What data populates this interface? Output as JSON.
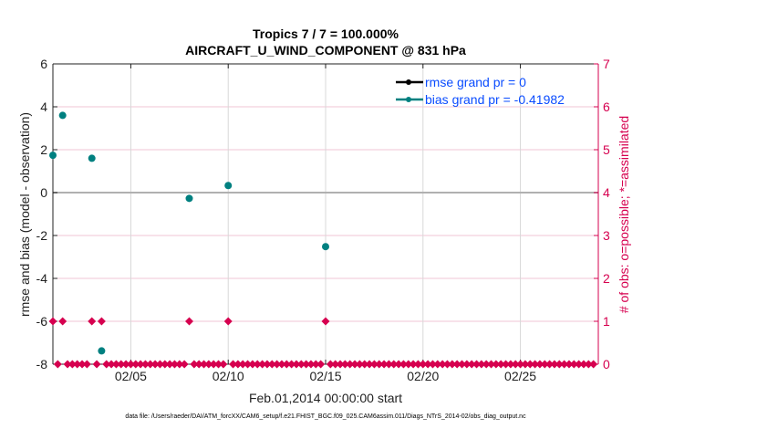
{
  "chart_data": {
    "type": "scatter",
    "title_line1": "Tropics 7 / 7 = 100.000%",
    "title_line2": "AIRCRAFT_U_WIND_COMPONENT @ 831 hPa",
    "xlabel": "Feb.01,2014 00:00:00 start",
    "ylabel_left": "rmse and bias (model - observation)",
    "ylabel_right": "# of obs: o=possible; *=assimilated",
    "footer": "data file: /Users/raeder/DAI/ATM_forcXX/CAM6_setup/f.e21.FHIST_BGC.f09_025.CAM6assim.011/Diags_NTrS_2014-02/obs_diag_output.nc",
    "x_units": "days since Feb.01,2014 00:00:00",
    "xlim": [
      0,
      28
    ],
    "x_ticks": [
      {
        "value": 4,
        "label": "02/05"
      },
      {
        "value": 9,
        "label": "02/10"
      },
      {
        "value": 14,
        "label": "02/15"
      },
      {
        "value": 19,
        "label": "02/20"
      },
      {
        "value": 24,
        "label": "02/25"
      }
    ],
    "ylim_left": [
      -8,
      6
    ],
    "y_ticks_left": [
      "-8",
      "-6",
      "-4",
      "-2",
      "0",
      "2",
      "4",
      "6"
    ],
    "ylim_right": [
      0,
      7
    ],
    "y_ticks_right": [
      "0",
      "1",
      "2",
      "3",
      "4",
      "5",
      "6",
      "7"
    ],
    "grid": true,
    "legend_placement": "top-right",
    "legend": [
      {
        "label": "rmse grand pr = 0",
        "color": "#000000"
      },
      {
        "label": "bias grand pr = -0.41982",
        "color": "#008080"
      }
    ],
    "bias_series": {
      "name": "bias",
      "color": "#008080",
      "x": [
        0,
        0.5,
        2,
        2.5,
        7,
        9,
        14
      ],
      "y": [
        1.74,
        3.6,
        1.6,
        -7.38,
        -0.27,
        0.33,
        -2.52
      ]
    },
    "obs_count_series": {
      "color": "#d6004f",
      "bin_hours": 6,
      "nonzero_x": [
        0,
        0.5,
        2,
        2.5,
        7,
        9,
        14
      ],
      "nonzero_count": [
        1,
        1,
        1,
        1,
        1,
        1,
        1
      ],
      "default_count": 0
    },
    "colors": {
      "legend_text": "#0a4cff",
      "right_axis": "#d6004f",
      "zero_line": "#b0b0b0"
    }
  }
}
